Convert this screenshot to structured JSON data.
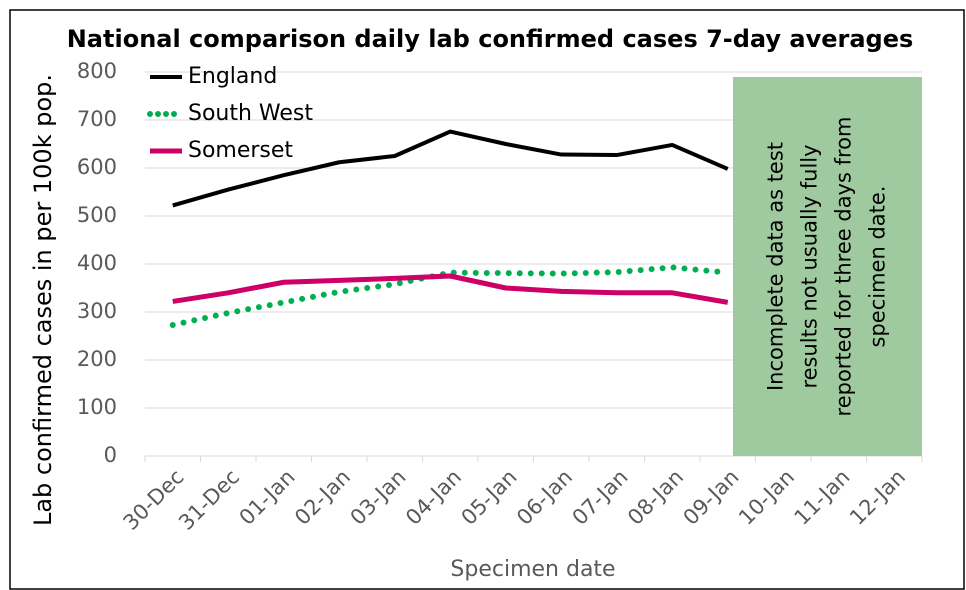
{
  "chart_data": {
    "type": "line",
    "title": "National comparison daily lab confirmed cases 7-day averages",
    "y_label": "Lab confirmed cases in per 100k pop.",
    "x_label": "Specimen date",
    "categories": [
      "30-Dec",
      "31-Dec",
      "01-Jan",
      "02-Jan",
      "03-Jan",
      "04-Jan",
      "05-Jan",
      "06-Jan",
      "07-Jan",
      "08-Jan",
      "09-Jan",
      "10-Jan",
      "11-Jan",
      "12-Jan"
    ],
    "series": [
      {
        "name": "England",
        "color": "#000000",
        "style": "solid",
        "values": [
          522,
          555,
          585,
          612,
          625,
          676,
          650,
          628,
          627,
          648,
          598,
          null,
          null,
          null
        ]
      },
      {
        "name": "South West",
        "color": "#00b050",
        "style": "dotted",
        "values": [
          273,
          298,
          320,
          342,
          358,
          382,
          381,
          380,
          383,
          393,
          382,
          null,
          null,
          null
        ]
      },
      {
        "name": "Somerset",
        "color": "#cc0066",
        "style": "solid",
        "values": [
          322,
          340,
          362,
          366,
          370,
          375,
          350,
          343,
          340,
          340,
          320,
          null,
          null,
          null
        ]
      }
    ],
    "ylim": [
      0,
      800
    ],
    "yticks": [
      0,
      100,
      200,
      300,
      400,
      500,
      600,
      700,
      800
    ],
    "grid": true,
    "annotation": {
      "color": "#9fc99f",
      "lines": [
        "Incomplete data as test",
        "results not usually fully",
        "reported for three days from",
        "specimen date."
      ]
    }
  }
}
